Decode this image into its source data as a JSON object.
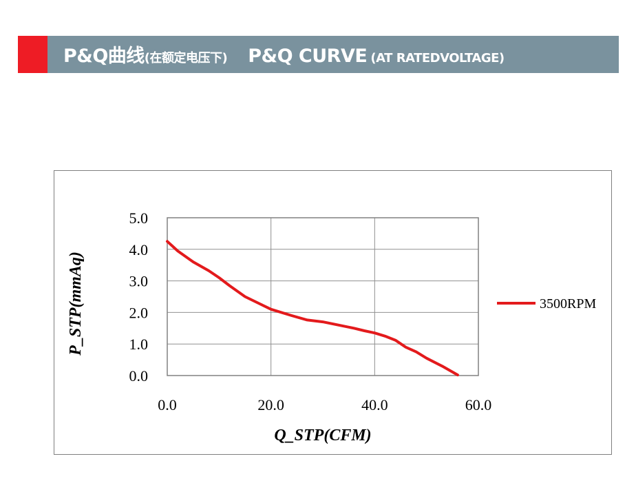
{
  "header": {
    "title_cn": "P&Q曲线",
    "subtitle_cn": "(在额定电压下)",
    "title_en": "P&Q CURVE",
    "subtitle_en": "(AT RATEDVOLTAGE)",
    "accent_color": "#ee1c25",
    "bar_color": "#7a929e"
  },
  "chart_data": {
    "type": "line",
    "title": "",
    "xlabel": "Q_STP(CFM)",
    "ylabel": "P_STP(mmAq)",
    "xlim": [
      0,
      60
    ],
    "ylim": [
      0,
      5
    ],
    "xticks": [
      0,
      20,
      40,
      60
    ],
    "yticks": [
      0,
      1,
      2,
      3,
      4,
      5
    ],
    "xtick_labels": [
      "0.0",
      "20.0",
      "40.0",
      "60.0"
    ],
    "ytick_labels": [
      "0.0",
      "1.0",
      "2.0",
      "3.0",
      "4.0",
      "5.0"
    ],
    "grid": true,
    "legend_position": "right",
    "series": [
      {
        "name": "3500RPM",
        "color": "#e31a1c",
        "x": [
          0,
          2,
          5,
          8,
          10,
          12,
          15,
          18,
          20,
          24,
          27,
          30,
          33,
          36,
          38,
          40,
          42,
          44,
          46,
          48,
          50,
          53,
          56
        ],
        "y": [
          4.25,
          3.95,
          3.6,
          3.32,
          3.1,
          2.85,
          2.5,
          2.26,
          2.1,
          1.9,
          1.76,
          1.7,
          1.6,
          1.5,
          1.42,
          1.35,
          1.25,
          1.12,
          0.9,
          0.75,
          0.55,
          0.3,
          0.02
        ]
      }
    ]
  }
}
